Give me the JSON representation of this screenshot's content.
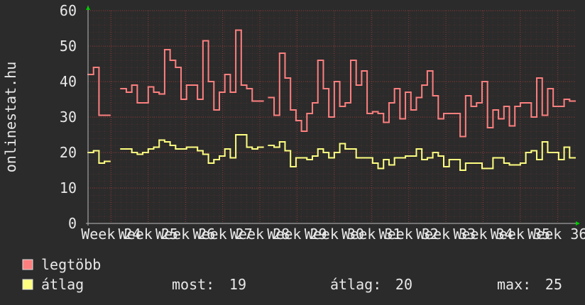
{
  "chart_data": {
    "type": "step-line",
    "y_axis_label": "onlinestat.hu",
    "ylim": [
      0,
      60
    ],
    "yticks": [
      0,
      10,
      20,
      30,
      40,
      50,
      60
    ],
    "xlim": [
      0,
      89
    ],
    "xticks": [
      {
        "value": 4.2,
        "label": "Week 24"
      },
      {
        "value": 11,
        "label": "Week 25"
      },
      {
        "value": 17.8,
        "label": "Week 26"
      },
      {
        "value": 24.6,
        "label": "Week 27"
      },
      {
        "value": 31.4,
        "label": "Week 28"
      },
      {
        "value": 38.2,
        "label": "Week 29"
      },
      {
        "value": 45,
        "label": "Week 30"
      },
      {
        "value": 51.8,
        "label": "Week 31"
      },
      {
        "value": 58.6,
        "label": "Week 32"
      },
      {
        "value": 65.4,
        "label": "Week 33"
      },
      {
        "value": 72.2,
        "label": "Week 34"
      },
      {
        "value": 79,
        "label": "Week 35"
      },
      {
        "value": 85.8,
        "label": "Week 36"
      }
    ],
    "grid": true,
    "series": [
      {
        "name": "legtöbb",
        "color": "#ff7f7f",
        "values": [
          42,
          44,
          30.5,
          30.5,
          null,
          null,
          38,
          37,
          39,
          34,
          34,
          38.5,
          37,
          36.5,
          49,
          46,
          44,
          35,
          39,
          39,
          35,
          51.5,
          40,
          32,
          37,
          42,
          37,
          54.5,
          39,
          38,
          34.5,
          34.5,
          null,
          35.5,
          30.5,
          48,
          41,
          32,
          29,
          26,
          31,
          34,
          46,
          38,
          30,
          40,
          33,
          34,
          46,
          39,
          43,
          31,
          31.5,
          31,
          28.5,
          34,
          38,
          29.5,
          37,
          32,
          35.5,
          39,
          43,
          36,
          29.5,
          31,
          31,
          31,
          24.5,
          36,
          33,
          34,
          40,
          27,
          32,
          29.5,
          33,
          27.5,
          33,
          34,
          34,
          30,
          41,
          30.5,
          38,
          33,
          33,
          35,
          34.5
        ]
      },
      {
        "name": "átlag",
        "color": "#ffff80",
        "values": [
          20,
          20.5,
          17,
          17.5,
          null,
          null,
          21,
          21,
          20,
          19.5,
          20,
          21,
          21.5,
          23.5,
          23,
          22,
          21,
          21,
          21.5,
          21.5,
          20.5,
          19.5,
          17,
          18,
          19,
          21,
          18.5,
          25,
          25,
          21.5,
          21,
          21.5,
          null,
          22,
          21.5,
          23,
          20.5,
          16,
          18.5,
          18.5,
          18,
          19,
          21,
          20,
          18.5,
          20,
          22.5,
          21,
          21,
          18.5,
          18.5,
          18.5,
          17,
          15.5,
          18,
          16.5,
          18.5,
          18.5,
          19,
          19,
          21,
          18,
          18.5,
          20,
          19,
          16,
          18,
          18,
          15,
          17,
          17,
          17,
          15.5,
          15.5,
          18.5,
          18.5,
          17,
          16.5,
          16.5,
          17,
          20,
          20.5,
          18,
          23,
          20,
          20,
          18,
          21.5,
          18.5
        ]
      }
    ],
    "stats": [
      {
        "label": "most:",
        "value": 19
      },
      {
        "label": "átlag:",
        "value": 20
      },
      {
        "label": "max:",
        "value": 25
      }
    ]
  }
}
